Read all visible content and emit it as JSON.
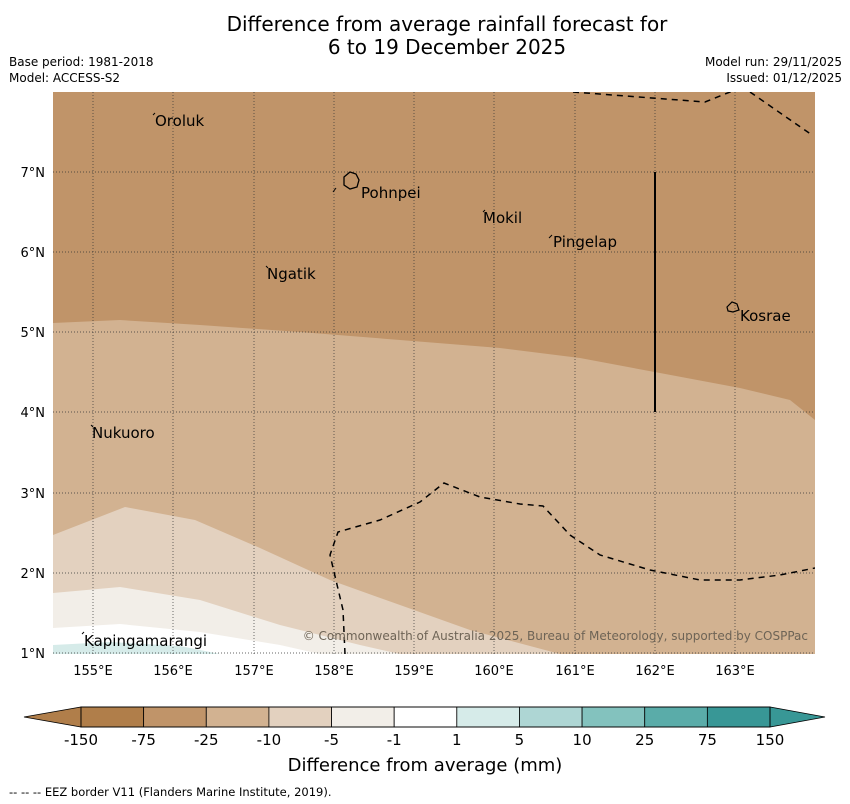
{
  "title": {
    "line1": "Difference from average rainfall forecast for",
    "line2": "6 to 19 December 2025"
  },
  "meta": {
    "base_period": "Base period: 1981-2018",
    "model": "Model: ACCESS-S2",
    "model_run": "Model run: 29/11/2025",
    "issued": "Issued: 01/12/2025"
  },
  "map": {
    "latitude_labels": [
      "7°N",
      "6°N",
      "5°N",
      "4°N",
      "3°N",
      "2°N",
      "1°N"
    ],
    "longitude_labels": [
      "155°E",
      "156°E",
      "157°E",
      "158°E",
      "159°E",
      "160°E",
      "161°E",
      "162°E",
      "163°E"
    ],
    "places": [
      {
        "name": "Oroluk",
        "lon": 155.75,
        "lat": 7.6
      },
      {
        "name": "Pohnpei",
        "lon": 158.35,
        "lat": 6.8
      },
      {
        "name": "Mokil",
        "lon": 159.85,
        "lat": 6.4
      },
      {
        "name": "Pingelap",
        "lon": 160.75,
        "lat": 6.15
      },
      {
        "name": "Ngatik",
        "lon": 157.2,
        "lat": 5.75
      },
      {
        "name": "Kosrae",
        "lon": 163.0,
        "lat": 5.3
      },
      {
        "name": "Nukuoro",
        "lon": 154.95,
        "lat": 3.75
      },
      {
        "name": "Kapingamarangi",
        "lon": 154.85,
        "lat": 1.1
      }
    ],
    "copyright": "© Commonwealth of Australia 2025, Bureau of Meteorology, supported by COSPPac",
    "colors": {
      "c_neg150": "#b07e4a",
      "c_neg75": "#c09469",
      "c_neg25": "#d2b291",
      "c_neg10": "#e3d1bf",
      "c_neg5": "#f2eee8",
      "c_neg1": "#ffffff",
      "c_1": "#d6ebe9",
      "c_5": "#aed6d4",
      "c_10": "#83c2be",
      "c_25": "#5aaca9",
      "c_75": "#389796"
    }
  },
  "colorbar": {
    "tick_labels": [
      "-150",
      "-75",
      "-25",
      "-10",
      "-5",
      "-1",
      "1",
      "5",
      "10",
      "25",
      "75",
      "150"
    ],
    "colors": [
      "#b07e4a",
      "#c09469",
      "#d2b291",
      "#e3d1bf",
      "#f2eee8",
      "#ffffff",
      "#d6ebe9",
      "#aed6d4",
      "#83c2be",
      "#5aaca9",
      "#389796"
    ],
    "title": "Difference from average (mm)"
  },
  "footnote": "-- -- -- EEZ border V11 (Flanders Marine Institute, 2019)."
}
